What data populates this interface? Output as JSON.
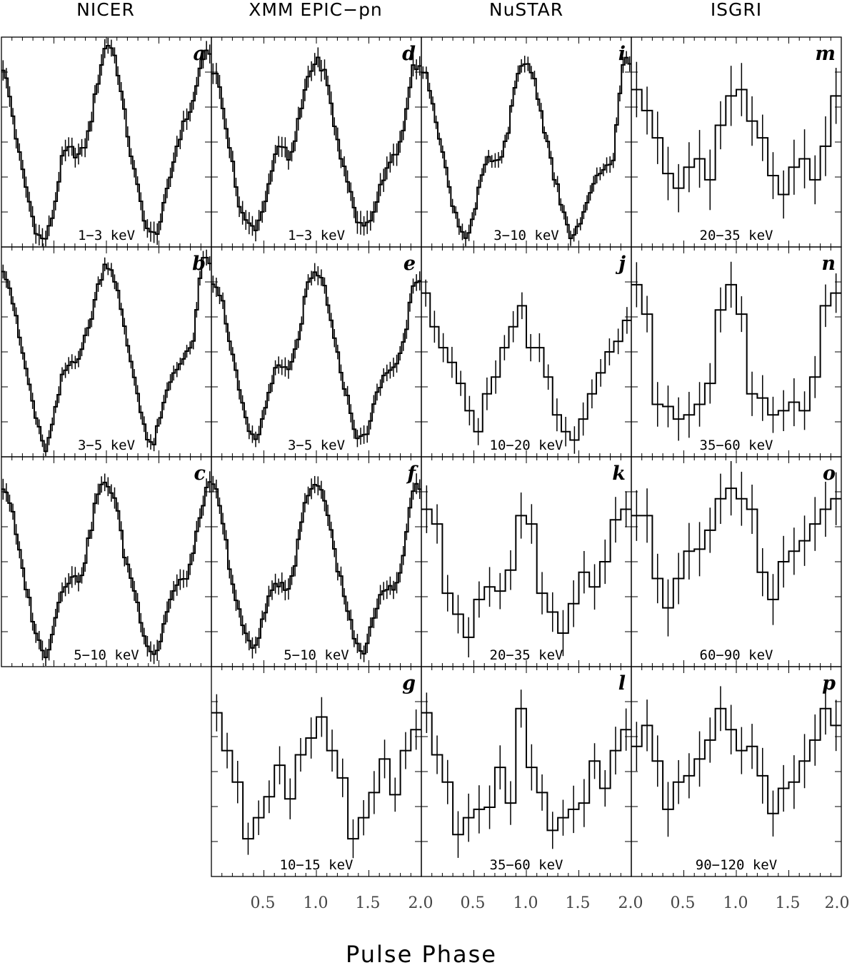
{
  "chart_data": {
    "type": "line",
    "xlabel": "Pulse Phase",
    "x_ticks": [
      "0.5",
      "1.0",
      "1.5",
      "2.0"
    ],
    "xlim": [
      0,
      2
    ],
    "columns": [
      "NICER",
      "XMM EPIC−pn",
      "NuSTAR",
      "ISGRI"
    ],
    "panels": [
      {
        "id": "a",
        "col": 0,
        "row": 0,
        "energy": "1−3 keV",
        "bins": 64,
        "err": 0.045,
        "values": [
          0.88,
          0.7,
          0.45,
          0.25,
          0.08,
          0.04,
          0.18,
          0.42,
          0.46,
          0.44,
          0.55,
          0.78,
          0.96,
          0.9,
          0.65,
          0.4,
          0.2,
          0.06,
          0.1,
          0.27,
          0.47,
          0.6,
          0.7,
          0.9
        ]
      },
      {
        "id": "b",
        "col": 0,
        "row": 1,
        "energy": "3−5 keV",
        "bins": 64,
        "err": 0.035,
        "values": [
          0.92,
          0.8,
          0.58,
          0.38,
          0.18,
          0.04,
          0.18,
          0.38,
          0.45,
          0.5,
          0.62,
          0.8,
          0.92,
          0.84,
          0.62,
          0.42,
          0.22,
          0.05,
          0.15,
          0.32,
          0.43,
          0.47,
          0.58,
          0.92
        ]
      },
      {
        "id": "c",
        "col": 0,
        "row": 2,
        "energy": "5−10 keV",
        "bins": 64,
        "err": 0.045,
        "values": [
          0.86,
          0.78,
          0.55,
          0.35,
          0.16,
          0.06,
          0.2,
          0.38,
          0.42,
          0.43,
          0.6,
          0.82,
          0.86,
          0.8,
          0.55,
          0.4,
          0.22,
          0.08,
          0.1,
          0.28,
          0.38,
          0.42,
          0.55,
          0.78
        ]
      },
      {
        "id": "d",
        "col": 1,
        "row": 0,
        "energy": "1−3 keV",
        "bins": 64,
        "err": 0.05,
        "values": [
          0.85,
          0.75,
          0.5,
          0.25,
          0.12,
          0.1,
          0.2,
          0.38,
          0.48,
          0.42,
          0.6,
          0.8,
          0.88,
          0.82,
          0.6,
          0.4,
          0.25,
          0.1,
          0.12,
          0.24,
          0.38,
          0.45,
          0.55,
          0.84
        ]
      },
      {
        "id": "e",
        "col": 1,
        "row": 1,
        "energy": "3−5 keV",
        "bins": 64,
        "err": 0.04,
        "values": [
          0.85,
          0.78,
          0.58,
          0.35,
          0.16,
          0.08,
          0.2,
          0.38,
          0.42,
          0.42,
          0.58,
          0.8,
          0.86,
          0.8,
          0.56,
          0.38,
          0.2,
          0.08,
          0.15,
          0.3,
          0.4,
          0.44,
          0.55,
          0.82
        ]
      },
      {
        "id": "f",
        "col": 1,
        "row": 2,
        "energy": "5−10 keV",
        "bins": 64,
        "err": 0.045,
        "values": [
          0.85,
          0.78,
          0.5,
          0.3,
          0.14,
          0.08,
          0.24,
          0.36,
          0.38,
          0.4,
          0.6,
          0.82,
          0.86,
          0.8,
          0.55,
          0.38,
          0.2,
          0.06,
          0.14,
          0.3,
          0.36,
          0.38,
          0.55,
          0.82
        ]
      },
      {
        "id": "g",
        "col": 1,
        "row": 3,
        "energy": "10−15 keV",
        "bins": 20,
        "err": 0.09,
        "values": [
          0.78,
          0.6,
          0.45,
          0.18,
          0.28,
          0.38,
          0.53,
          0.37,
          0.58,
          0.66,
          0.76,
          0.6,
          0.47,
          0.18,
          0.28,
          0.4,
          0.56,
          0.39,
          0.6,
          0.7
        ]
      },
      {
        "id": "i",
        "col": 2,
        "row": 0,
        "energy": "3−10 keV",
        "bins": 64,
        "err": 0.035,
        "values": [
          0.85,
          0.75,
          0.55,
          0.32,
          0.15,
          0.06,
          0.15,
          0.34,
          0.42,
          0.4,
          0.58,
          0.8,
          0.88,
          0.78,
          0.58,
          0.38,
          0.2,
          0.06,
          0.1,
          0.2,
          0.32,
          0.38,
          0.45,
          0.85
        ]
      },
      {
        "id": "j",
        "col": 2,
        "row": 1,
        "energy": "10−20 keV",
        "bins": 24,
        "err": 0.07,
        "values": [
          0.78,
          0.62,
          0.52,
          0.45,
          0.35,
          0.22,
          0.12,
          0.3,
          0.38,
          0.52,
          0.62,
          0.72,
          0.52,
          0.52,
          0.38,
          0.2,
          0.12,
          0.08,
          0.18,
          0.3,
          0.4,
          0.5,
          0.55,
          0.65
        ]
      },
      {
        "id": "k",
        "col": 2,
        "row": 2,
        "energy": "20−35 keV",
        "bins": 20,
        "err": 0.1,
        "values": [
          0.75,
          0.68,
          0.35,
          0.25,
          0.14,
          0.32,
          0.38,
          0.36,
          0.46,
          0.72,
          0.68,
          0.35,
          0.26,
          0.16,
          0.3,
          0.45,
          0.38,
          0.5,
          0.7,
          0.75
        ]
      },
      {
        "id": "l",
        "col": 2,
        "row": 3,
        "energy": "35−60 keV",
        "bins": 20,
        "err": 0.1,
        "values": [
          0.78,
          0.58,
          0.45,
          0.2,
          0.28,
          0.32,
          0.33,
          0.52,
          0.35,
          0.8,
          0.52,
          0.4,
          0.22,
          0.28,
          0.32,
          0.35,
          0.55,
          0.42,
          0.6,
          0.7
        ]
      },
      {
        "id": "m",
        "col": 3,
        "row": 0,
        "energy": "20−35 keV",
        "bins": 20,
        "err": 0.13,
        "values": [
          0.75,
          0.65,
          0.52,
          0.35,
          0.28,
          0.38,
          0.42,
          0.32,
          0.58,
          0.72,
          0.75,
          0.6,
          0.52,
          0.34,
          0.25,
          0.38,
          0.42,
          0.32,
          0.48,
          0.72
        ]
      },
      {
        "id": "n",
        "col": 3,
        "row": 1,
        "energy": "35−60 keV",
        "bins": 20,
        "err": 0.1,
        "values": [
          0.82,
          0.68,
          0.25,
          0.24,
          0.18,
          0.2,
          0.25,
          0.35,
          0.7,
          0.82,
          0.68,
          0.3,
          0.28,
          0.2,
          0.22,
          0.26,
          0.22,
          0.38,
          0.72,
          0.78
        ]
      },
      {
        "id": "o",
        "col": 3,
        "row": 2,
        "energy": "60−90 keV",
        "bins": 20,
        "err": 0.12,
        "values": [
          0.72,
          0.72,
          0.42,
          0.28,
          0.42,
          0.55,
          0.56,
          0.65,
          0.8,
          0.85,
          0.8,
          0.75,
          0.45,
          0.32,
          0.5,
          0.55,
          0.6,
          0.68,
          0.75,
          0.8
        ]
      },
      {
        "id": "p",
        "col": 3,
        "row": 3,
        "energy": "90−120 keV",
        "bins": 20,
        "err": 0.12,
        "values": [
          0.62,
          0.72,
          0.55,
          0.32,
          0.45,
          0.48,
          0.56,
          0.65,
          0.8,
          0.7,
          0.6,
          0.62,
          0.48,
          0.3,
          0.42,
          0.45,
          0.55,
          0.65,
          0.8,
          0.72
        ]
      }
    ]
  }
}
